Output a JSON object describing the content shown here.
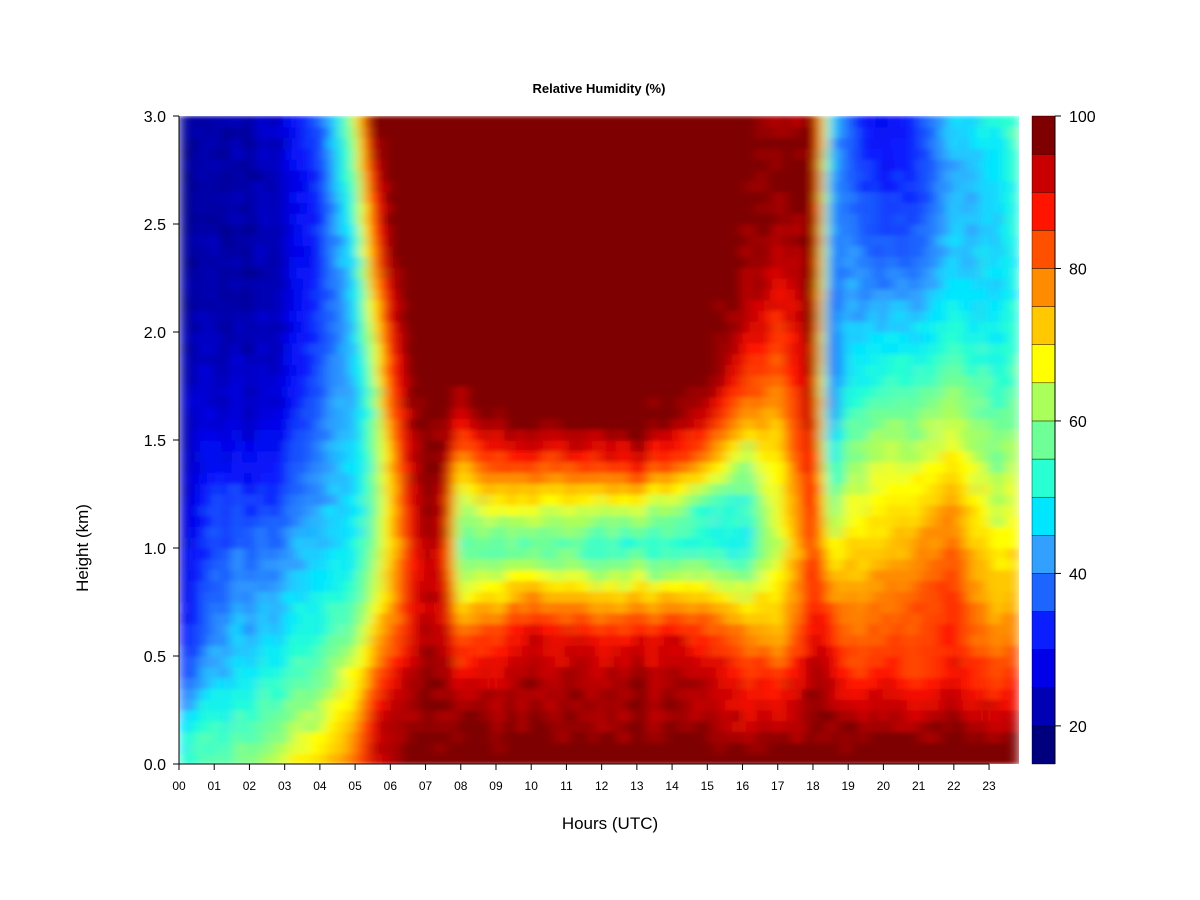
{
  "chart_data": {
    "type": "heatmap",
    "title": "Relative Humidity (%)",
    "xlabel": "Hours (UTC)",
    "ylabel": "Height (km)",
    "xlim": [
      0,
      23.85
    ],
    "ylim": [
      0.0,
      3.0
    ],
    "x_ticks": [
      0,
      1,
      2,
      3,
      4,
      5,
      6,
      7,
      8,
      9,
      10,
      11,
      12,
      13,
      14,
      15,
      16,
      17,
      18,
      19,
      20,
      21,
      22,
      23
    ],
    "x_tick_labels": [
      "00",
      "01",
      "02",
      "03",
      "04",
      "05",
      "06",
      "07",
      "08",
      "09",
      "10",
      "11",
      "12",
      "13",
      "14",
      "15",
      "16",
      "17",
      "18",
      "19",
      "20",
      "21",
      "22",
      "23"
    ],
    "y_ticks": [
      0.0,
      0.5,
      1.0,
      1.5,
      2.0,
      2.5,
      3.0
    ],
    "y_tick_labels": [
      "0.0",
      "0.5",
      "1.0",
      "1.5",
      "2.0",
      "2.5",
      "3.0"
    ],
    "colorbar": {
      "range": [
        15,
        100
      ],
      "ticks": [
        20,
        40,
        60,
        80,
        100
      ],
      "tick_labels": [
        "20",
        "40",
        "60",
        "80",
        "100"
      ],
      "levels": [
        15,
        20,
        25,
        30,
        35,
        40,
        45,
        50,
        55,
        60,
        65,
        70,
        75,
        80,
        85,
        90,
        95,
        100
      ],
      "colors": [
        "#00007f",
        "#0000b4",
        "#0000e9",
        "#0a1eff",
        "#1e64ff",
        "#32a0ff",
        "#00e6ff",
        "#28ffd2",
        "#6eff96",
        "#aaff5a",
        "#ffff00",
        "#ffc800",
        "#ff8c00",
        "#ff5000",
        "#ff1400",
        "#c80000",
        "#7f0000"
      ]
    },
    "heights_km": [
      0.0,
      0.2,
      0.4,
      0.6,
      0.8,
      1.0,
      1.2,
      1.4,
      1.6,
      1.8,
      2.0,
      2.2,
      2.4,
      2.6,
      2.8,
      3.0
    ],
    "hours_utc": [
      0,
      1,
      2,
      3,
      4,
      5,
      5.5,
      6,
      6.5,
      7,
      7.5,
      8,
      9,
      10,
      11,
      12,
      13,
      14,
      15,
      16,
      17,
      18,
      18.5,
      19,
      20,
      21,
      22,
      23,
      23.85
    ],
    "values": [
      [
        55,
        48,
        35,
        30,
        28,
        26,
        25,
        24,
        24,
        23,
        22,
        21,
        21,
        20,
        21,
        22
      ],
      [
        55,
        52,
        45,
        40,
        38,
        36,
        34,
        30,
        26,
        24,
        22,
        21,
        21,
        21,
        21,
        21
      ],
      [
        60,
        55,
        50,
        45,
        42,
        38,
        34,
        30,
        26,
        24,
        23,
        22,
        22,
        22,
        22,
        23
      ],
      [
        65,
        58,
        52,
        47,
        44,
        40,
        36,
        32,
        28,
        26,
        25,
        24,
        24,
        24,
        25,
        26
      ],
      [
        70,
        64,
        58,
        52,
        48,
        45,
        42,
        40,
        38,
        36,
        34,
        33,
        33,
        33,
        34,
        36
      ],
      [
        80,
        75,
        68,
        60,
        55,
        50,
        48,
        47,
        46,
        46,
        47,
        48,
        50,
        55,
        60,
        65
      ],
      [
        92,
        90,
        80,
        70,
        62,
        58,
        56,
        55,
        55,
        58,
        65,
        72,
        80,
        85,
        92,
        100
      ],
      [
        96,
        95,
        90,
        80,
        75,
        72,
        72,
        75,
        80,
        85,
        90,
        94,
        97,
        99,
        100,
        100
      ],
      [
        100,
        97,
        95,
        90,
        88,
        88,
        90,
        92,
        95,
        98,
        100,
        100,
        100,
        100,
        100,
        100
      ],
      [
        100,
        97,
        96,
        93,
        92,
        92,
        95,
        96,
        98,
        100,
        100,
        100,
        100,
        100,
        100,
        100
      ],
      [
        100,
        98,
        97,
        95,
        94,
        95,
        97,
        98,
        100,
        100,
        100,
        100,
        100,
        100,
        100,
        100
      ],
      [
        100,
        98,
        90,
        80,
        65,
        55,
        60,
        75,
        90,
        100,
        100,
        100,
        100,
        100,
        100,
        100
      ],
      [
        100,
        96,
        92,
        85,
        70,
        55,
        68,
        85,
        97,
        100,
        100,
        100,
        100,
        100,
        100,
        100
      ],
      [
        100,
        96,
        95,
        92,
        75,
        55,
        68,
        85,
        100,
        100,
        100,
        100,
        100,
        100,
        100,
        100
      ],
      [
        100,
        96,
        95,
        90,
        72,
        55,
        66,
        85,
        100,
        100,
        100,
        100,
        100,
        100,
        100,
        100
      ],
      [
        100,
        96,
        95,
        88,
        70,
        52,
        66,
        88,
        100,
        100,
        100,
        100,
        100,
        100,
        100,
        100
      ],
      [
        100,
        96,
        95,
        88,
        70,
        52,
        65,
        90,
        100,
        100,
        100,
        100,
        100,
        100,
        100,
        100
      ],
      [
        100,
        96,
        95,
        90,
        70,
        52,
        62,
        85,
        97,
        100,
        100,
        100,
        100,
        100,
        100,
        100
      ],
      [
        100,
        94,
        92,
        85,
        68,
        50,
        52,
        75,
        90,
        98,
        100,
        100,
        100,
        100,
        100,
        100
      ],
      [
        100,
        92,
        88,
        80,
        65,
        50,
        52,
        62,
        78,
        88,
        94,
        97,
        98,
        100,
        100,
        100
      ],
      [
        100,
        90,
        85,
        72,
        68,
        62,
        65,
        68,
        72,
        78,
        84,
        88,
        92,
        95,
        96,
        92
      ],
      [
        100,
        96,
        95,
        90,
        88,
        86,
        88,
        92,
        95,
        97,
        98,
        98,
        99,
        100,
        100,
        100
      ],
      [
        100,
        98,
        96,
        90,
        80,
        70,
        60,
        50,
        42,
        38,
        38,
        40,
        42,
        44,
        46,
        50
      ],
      [
        100,
        95,
        85,
        80,
        75,
        70,
        65,
        60,
        55,
        48,
        45,
        42,
        40,
        38,
        36,
        36
      ],
      [
        100,
        95,
        88,
        82,
        78,
        72,
        68,
        64,
        58,
        52,
        46,
        40,
        36,
        33,
        30,
        28
      ],
      [
        100,
        95,
        85,
        84,
        82,
        78,
        72,
        66,
        60,
        54,
        48,
        42,
        38,
        36,
        34,
        36
      ],
      [
        100,
        95,
        88,
        86,
        84,
        80,
        74,
        68,
        62,
        56,
        50,
        46,
        44,
        42,
        42,
        46
      ],
      [
        100,
        94,
        86,
        80,
        74,
        70,
        66,
        62,
        58,
        54,
        50,
        48,
        46,
        46,
        48,
        50
      ],
      [
        100,
        92,
        82,
        76,
        70,
        66,
        62,
        60,
        56,
        52,
        50,
        48,
        48,
        48,
        50,
        52
      ]
    ],
    "grid": false,
    "legend": "colorbar-right"
  }
}
